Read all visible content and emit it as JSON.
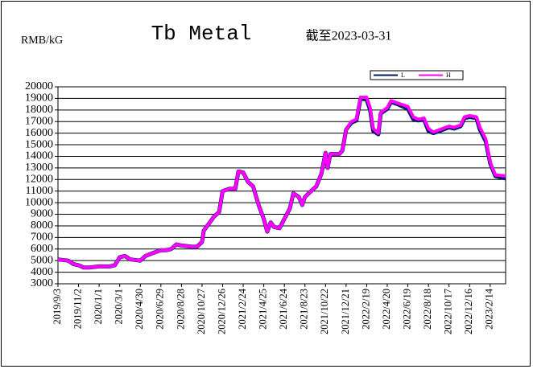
{
  "chart_data": {
    "type": "line",
    "title": "Tb Metal",
    "subtitle": "截至2023-03-31",
    "y_label": "RMB/kG",
    "x": [
      "2019/9/3",
      "2019/10/3",
      "2019/10/18",
      "2019/11/2",
      "2019/11/17",
      "2019/12/2",
      "2020/1/1",
      "2020/2/1",
      "2020/2/16",
      "2020/3/1",
      "2020/3/16",
      "2020/4/1",
      "2020/4/30",
      "2020/5/15",
      "2020/6/1",
      "2020/6/29",
      "2020/7/14",
      "2020/7/29",
      "2020/8/13",
      "2020/8/28",
      "2020/9/27",
      "2020/10/12",
      "2020/10/27",
      "2020/11/1",
      "2020/11/16",
      "2020/12/1",
      "2020/12/16",
      "2020/12/26",
      "2021/1/15",
      "2021/2/1",
      "2021/2/10",
      "2021/2/24",
      "2021/3/10",
      "2021/3/25",
      "2021/4/10",
      "2021/4/25",
      "2021/5/5",
      "2021/5/15",
      "2021/5/25",
      "2021/6/10",
      "2021/6/24",
      "2021/7/10",
      "2021/7/20",
      "2021/8/5",
      "2021/8/15",
      "2021/8/23",
      "2021/9/10",
      "2021/9/25",
      "2021/10/10",
      "2021/10/22",
      "2021/10/28",
      "2021/11/5",
      "2021/12/1",
      "2021/12/10",
      "2021/12/21",
      "2022/1/5",
      "2022/1/20",
      "2022/2/1",
      "2022/2/19",
      "2022/3/1",
      "2022/3/10",
      "2022/3/25",
      "2022/4/1",
      "2022/4/20",
      "2022/5/1",
      "2022/5/20",
      "2022/6/19",
      "2022/7/5",
      "2022/7/20",
      "2022/8/5",
      "2022/8/18",
      "2022/9/1",
      "2022/9/20",
      "2022/10/17",
      "2022/11/1",
      "2022/11/20",
      "2022/12/1",
      "2022/12/16",
      "2023/1/5",
      "2023/1/15",
      "2023/2/1",
      "2023/2/14",
      "2023/3/1",
      "2023/3/31"
    ],
    "series": [
      {
        "name": "L",
        "color": "#001a66",
        "values": [
          5100,
          5000,
          4700,
          4600,
          4400,
          4400,
          4500,
          4500,
          4600,
          5300,
          5400,
          5100,
          5000,
          5400,
          5600,
          5900,
          5900,
          6000,
          6400,
          6300,
          6200,
          6200,
          6600,
          7600,
          8200,
          8800,
          9200,
          11000,
          11200,
          11200,
          12700,
          12600,
          11800,
          11400,
          9800,
          8600,
          7500,
          8300,
          7900,
          7800,
          8600,
          9500,
          10800,
          10500,
          9800,
          10500,
          11000,
          11400,
          12500,
          14300,
          13000,
          14200,
          14200,
          14500,
          16300,
          16900,
          17100,
          19000,
          18900,
          18000,
          16200,
          15900,
          17700,
          18100,
          18700,
          18500,
          18100,
          17200,
          17100,
          17200,
          16200,
          16000,
          16200,
          16500,
          16400,
          16600,
          17300,
          17400,
          17300,
          16300,
          15300,
          13400,
          12300,
          12100
        ]
      },
      {
        "name": "H",
        "color": "#ff00ff",
        "values": [
          5100,
          5000,
          4700,
          4600,
          4400,
          4400,
          4500,
          4500,
          4600,
          5300,
          5400,
          5100,
          5000,
          5400,
          5600,
          5900,
          5900,
          6000,
          6400,
          6300,
          6200,
          6200,
          6600,
          7600,
          8200,
          8800,
          9200,
          11000,
          11200,
          11200,
          12700,
          12600,
          11800,
          11400,
          9800,
          8600,
          7500,
          8300,
          7900,
          7800,
          8600,
          9500,
          10800,
          10500,
          9800,
          10500,
          11000,
          11400,
          12500,
          14300,
          13000,
          14200,
          14200,
          14500,
          16300,
          17000,
          17200,
          19100,
          19100,
          18200,
          16400,
          16000,
          17800,
          18200,
          18800,
          18600,
          18300,
          17400,
          17200,
          17300,
          16400,
          16100,
          16300,
          16600,
          16500,
          16700,
          17400,
          17500,
          17400,
          16500,
          15500,
          13500,
          12400,
          12300
        ]
      }
    ],
    "xlim": [
      "2019/9/3",
      "2023/3/31"
    ],
    "xticks": [
      "2019/9/3",
      "2019/11/2",
      "2020/1/1",
      "2020/3/1",
      "2020/4/30",
      "2020/6/29",
      "2020/8/28",
      "2020/10/27",
      "2020/12/26",
      "2021/2/24",
      "2021/4/25",
      "2021/6/24",
      "2021/8/23",
      "2021/10/22",
      "2021/12/21",
      "2022/2/19",
      "2022/4/20",
      "2022/6/19",
      "2022/8/18",
      "2022/10/17",
      "2022/12/16",
      "2023/2/14"
    ],
    "ylim": [
      3000,
      20000
    ],
    "yticks": [
      3000,
      4000,
      5000,
      6000,
      7000,
      8000,
      9000,
      10000,
      11000,
      12000,
      13000,
      14000,
      15000,
      16000,
      17000,
      18000,
      19000,
      20000
    ],
    "grid": true,
    "legend": "top-right"
  }
}
